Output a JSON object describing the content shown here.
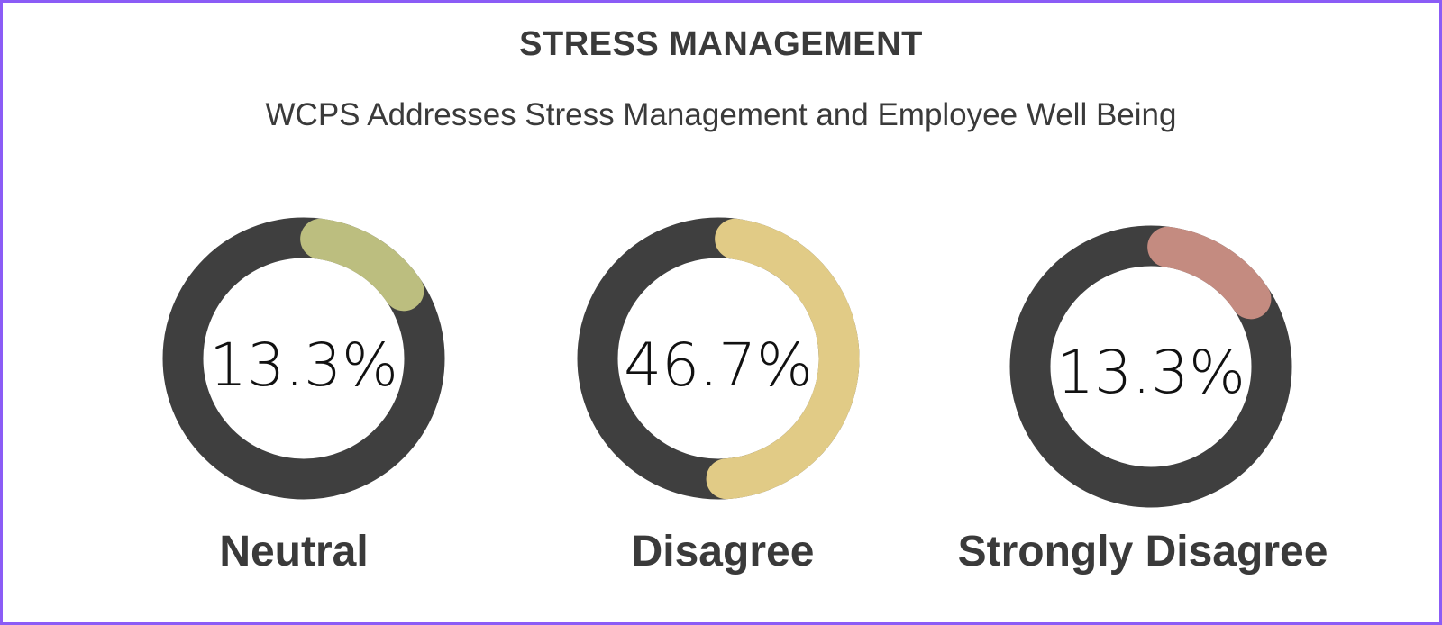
{
  "chart_data": {
    "type": "donut",
    "title": "STRESS MANAGEMENT",
    "subtitle": "WCPS Addresses Stress Management and Employee Well Being",
    "items": [
      {
        "label": "Neutral",
        "value": 13.3,
        "display": "13.3%",
        "color": "#bcbe7f"
      },
      {
        "label": "Disagree",
        "value": 46.7,
        "display": "46.7%",
        "color": "#e1cb86"
      },
      {
        "label": "Strongly Disagree",
        "value": 13.3,
        "display": "13.3%",
        "color": "#c48b80"
      }
    ],
    "track_color": "#3f3f3f",
    "range": [
      0,
      100
    ]
  }
}
